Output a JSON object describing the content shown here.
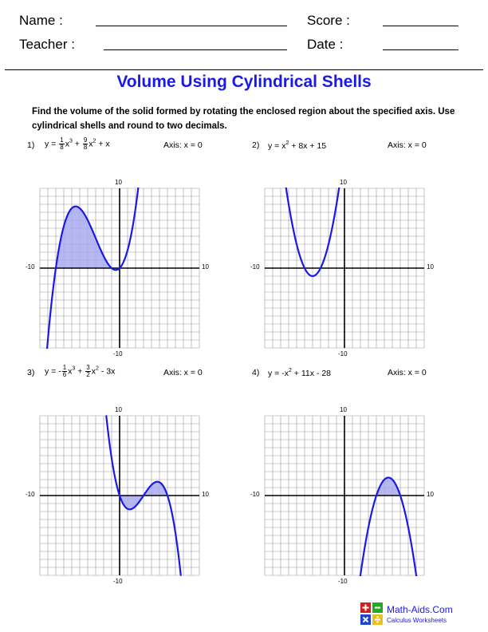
{
  "header": {
    "name_label": "Name :",
    "score_label": "Score :",
    "teacher_label": "Teacher :",
    "date_label": "Date :"
  },
  "title": "Volume Using Cylindrical Shells",
  "instructions": "Find the volume of the solid formed by rotating the enclosed region about the specified axis. Use cylindrical shells and round to two decimals.",
  "problems": [
    {
      "number": "1)",
      "axis": "Axis: x = 0",
      "equation": {
        "y": "y =",
        "f1n": "1",
        "f1d": "8",
        "t1": "x",
        "e1": "3",
        "plus1": " + ",
        "f2n": "9",
        "f2d": "8",
        "t2": "x",
        "e2": "2",
        "rest": " + x"
      },
      "tick_top": "10",
      "tick_bottom": "-10",
      "tick_left": "-10",
      "tick_right": "10",
      "fn": "p1"
    },
    {
      "number": "2)",
      "axis": "Axis: x = 0",
      "equation": {
        "text_a": "y = x",
        "e1": "2",
        "text_b": " + 8x + 15"
      },
      "tick_top": "10",
      "tick_bottom": "-10",
      "tick_left": "-10",
      "tick_right": "10",
      "fn": "p2"
    },
    {
      "number": "3)",
      "axis": "Axis: x = 0",
      "equation": {
        "y": "y = -",
        "f1n": "1",
        "f1d": "6",
        "t1": "x",
        "e1": "3",
        "plus1": " + ",
        "f2n": "3",
        "f2d": "2",
        "t2": "x",
        "e2": "2",
        "rest": " - 3x"
      },
      "tick_top": "10",
      "tick_bottom": "-10",
      "tick_left": "-10",
      "tick_right": "10",
      "fn": "p3"
    },
    {
      "number": "4)",
      "axis": "Axis: x = 0",
      "equation": {
        "text_a": "y = -x",
        "e1": "2",
        "text_b": " + 11x - 28"
      },
      "tick_top": "10",
      "tick_bottom": "-10",
      "tick_left": "-10",
      "tick_right": "10",
      "fn": "p4"
    }
  ],
  "colors": {
    "curve": "#1a1ae6",
    "shade": "#a9a9ee",
    "title": "#1a1ae6"
  },
  "footer": {
    "brand": "Math-Aids.Com",
    "sub": "Calculus Worksheets"
  }
}
